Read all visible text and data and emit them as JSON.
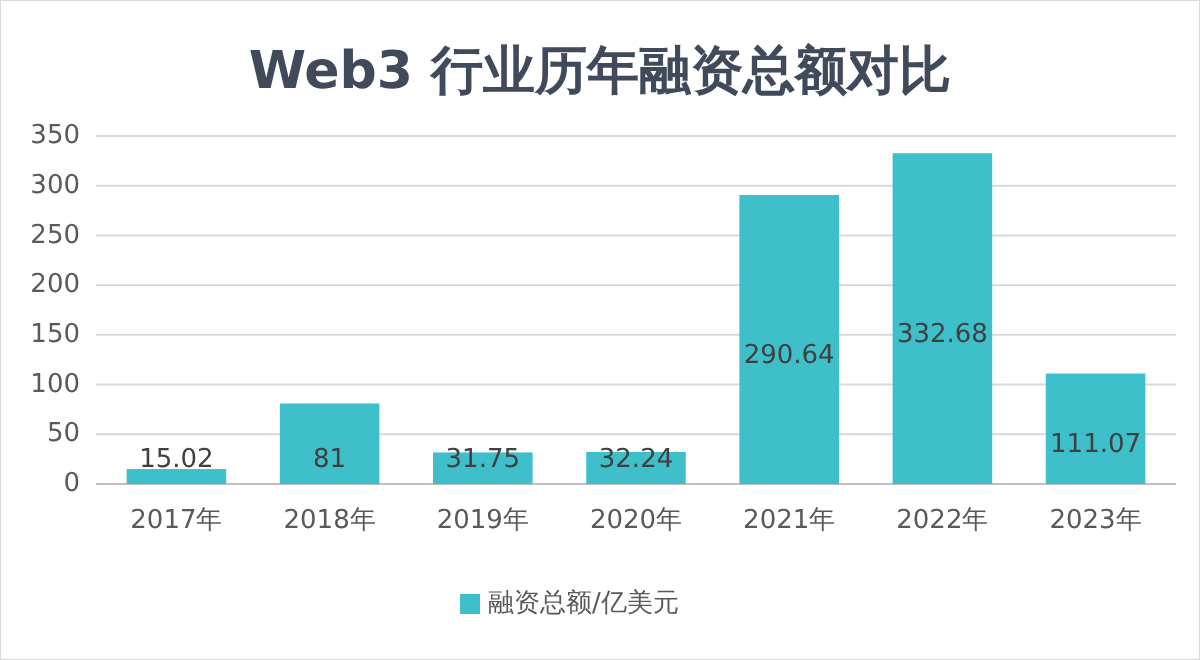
{
  "chart_data": {
    "type": "bar",
    "title": "Web3 行业历年融资总额对比",
    "categories": [
      "2017年",
      "2018年",
      "2019年",
      "2020年",
      "2021年",
      "2022年",
      "2023年"
    ],
    "series": [
      {
        "name": "融资总额/亿美元",
        "color": "#3fbfca",
        "values": [
          15.02,
          81,
          31.75,
          32.24,
          290.64,
          332.68,
          111.07
        ]
      }
    ],
    "ylim": [
      0,
      350
    ],
    "yticks": [
      0,
      50,
      100,
      150,
      200,
      250,
      300,
      350
    ],
    "grid": "y",
    "legend": "bottom",
    "data_labels": true
  }
}
